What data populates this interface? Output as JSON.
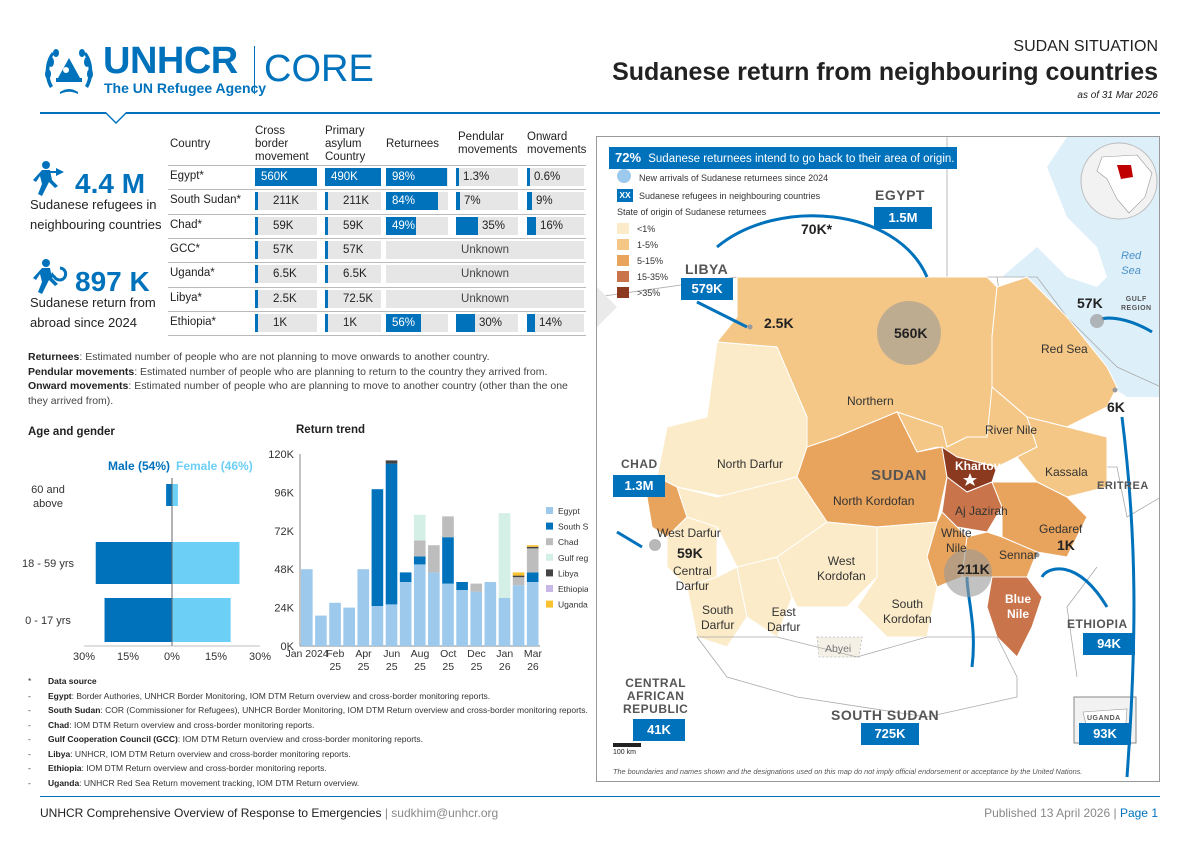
{
  "header": {
    "logo_text": "UNHCR",
    "logo_tagline": "The UN Refugee Agency",
    "product": "CORE",
    "supertitle": "SUDAN SITUATION",
    "title": "Sudanese return from neighbouring countries",
    "date": "as of 31 Mar 2026"
  },
  "kpis": [
    {
      "value": "4.4 M",
      "label_1": "Sudanese refugees in",
      "label_2": "neighbouring countries",
      "icon": "refugee-walking-icon"
    },
    {
      "value": "897 K",
      "label_1": "Sudanese return from",
      "label_2": "abroad since 2024",
      "icon": "return-walking-icon"
    }
  ],
  "table": {
    "headers": {
      "country": "Country",
      "cross_1": "Cross",
      "cross_2": "border",
      "cross_3": "movement",
      "primary_1": "Primary",
      "primary_2": "asylum",
      "primary_3": "Country",
      "returnees": "Returnees",
      "pendular_1": "Pendular",
      "pendular_2": "movements",
      "onward_1": "Onward",
      "onward_2": "movements"
    },
    "unknown_label": "Unknown",
    "rows": [
      {
        "country": "Egypt*",
        "cross": "560K",
        "cross_frac": 1.0,
        "primary": "490K",
        "primary_frac": 1.0,
        "returnees": "98%",
        "returnees_frac": 0.98,
        "pendular": "1.3%",
        "pendular_frac": 0.013,
        "onward": "0.6%",
        "onward_frac": 0.006,
        "unknown": false
      },
      {
        "country": "South Sudan*",
        "cross": "211K",
        "cross_frac": 0.04,
        "primary": "211K",
        "primary_frac": 0.04,
        "returnees": "84%",
        "returnees_frac": 0.84,
        "pendular": "7%",
        "pendular_frac": 0.07,
        "onward": "9%",
        "onward_frac": 0.09,
        "unknown": false
      },
      {
        "country": "Chad*",
        "cross": "59K",
        "cross_frac": 0.04,
        "primary": "59K",
        "primary_frac": 0.03,
        "returnees": "49%",
        "returnees_frac": 0.49,
        "pendular": "35%",
        "pendular_frac": 0.35,
        "onward": "16%",
        "onward_frac": 0.16,
        "unknown": false
      },
      {
        "country": "GCC*",
        "cross": "57K",
        "cross_frac": 0.03,
        "primary": "57K",
        "primary_frac": 0.03,
        "unknown": true
      },
      {
        "country": "Uganda*",
        "cross": "6.5K",
        "cross_frac": 0.01,
        "primary": "6.5K",
        "primary_frac": 0.01,
        "unknown": true
      },
      {
        "country": "Libya*",
        "cross": "2.5K",
        "cross_frac": 0.01,
        "primary": "72.5K",
        "primary_frac": 0.03,
        "unknown": true
      },
      {
        "country": "Ethiopia*",
        "cross": "1K",
        "cross_frac": 0.01,
        "primary": "1K",
        "primary_frac": 0.01,
        "returnees": "56%",
        "returnees_frac": 0.56,
        "pendular": "30%",
        "pendular_frac": 0.3,
        "onward": "14%",
        "onward_frac": 0.14,
        "unknown": false
      }
    ]
  },
  "definitions": [
    {
      "term": "Returnees",
      "text": ": Estimated number of people who are not planning to move onwards to another country."
    },
    {
      "term": "Pendular movements",
      "text": ": Estimated number of people who are planning to return to the country they arrived from."
    },
    {
      "term": "Onward movements",
      "text": ": Estimated number of people who are planning to move to another country (other than the one"
    },
    {
      "term": "",
      "text": "they arrived from)."
    }
  ],
  "age_gender": {
    "title": "Age and gender",
    "male_label": "Male (54%)",
    "female_label": "Female (46%)",
    "male_color": "#0072BC",
    "female_color": "#6CCFF6",
    "ticks": [
      "30%",
      "15%",
      "0%",
      "15%",
      "30%"
    ],
    "groups": [
      {
        "label_1": "60 and",
        "label_2": "above",
        "male": 2,
        "female": 2
      },
      {
        "label_1": "18 - 59 yrs",
        "label_2": "",
        "male": 26,
        "female": 23
      },
      {
        "label_1": "0 - 17 yrs",
        "label_2": "",
        "male": 23,
        "female": 20
      }
    ]
  },
  "chart_data": {
    "type": "bar",
    "title": "Return trend",
    "stacked": true,
    "ylim": [
      0,
      120000
    ],
    "yticks": [
      "0K",
      "24K",
      "48K",
      "72K",
      "96K",
      "120K"
    ],
    "x_labels": [
      {
        "i": 0,
        "l1": "Jan 2024",
        "l2": ""
      },
      {
        "i": 2,
        "l1": "Feb",
        "l2": "25"
      },
      {
        "i": 4,
        "l1": "Apr",
        "l2": "25"
      },
      {
        "i": 6,
        "l1": "Jun",
        "l2": "25"
      },
      {
        "i": 8,
        "l1": "Aug",
        "l2": "25"
      },
      {
        "i": 10,
        "l1": "Oct",
        "l2": "25"
      },
      {
        "i": 12,
        "l1": "Dec",
        "l2": "25"
      },
      {
        "i": 14,
        "l1": "Jan",
        "l2": "26"
      },
      {
        "i": 16,
        "l1": "Mar",
        "l2": "26"
      }
    ],
    "series": [
      {
        "name": "Egypt",
        "color": "#9DC9EC",
        "values": [
          48000,
          19000,
          27000,
          24000,
          48000,
          25000,
          26000,
          40000,
          51000,
          46000,
          39000,
          35000,
          34000,
          40000,
          30000,
          38000,
          40000
        ]
      },
      {
        "name": "South Sudan",
        "color": "#0072BC",
        "values": [
          0,
          0,
          0,
          0,
          0,
          73000,
          88000,
          6000,
          5000,
          0,
          29000,
          5000,
          0,
          0,
          0,
          0,
          6000
        ]
      },
      {
        "name": "Chad",
        "color": "#BDBDBD",
        "values": [
          0,
          0,
          0,
          0,
          0,
          0,
          0,
          0,
          10000,
          17000,
          13000,
          0,
          5000,
          0,
          0,
          5000,
          15000
        ]
      },
      {
        "name": "Gulf region",
        "color": "#D4EFE6",
        "values": [
          0,
          0,
          0,
          0,
          0,
          0,
          0,
          0,
          16000,
          0,
          0,
          0,
          0,
          0,
          53000,
          0,
          0
        ]
      },
      {
        "name": "Libya",
        "color": "#444444",
        "values": [
          0,
          0,
          0,
          0,
          0,
          0,
          2000,
          0,
          0,
          0,
          0,
          0,
          0,
          0,
          0,
          1000,
          1000
        ]
      },
      {
        "name": "Ethiopia",
        "color": "#C7B8E8",
        "values": [
          0,
          0,
          0,
          0,
          0,
          0,
          0,
          0,
          0,
          0,
          0,
          0,
          0,
          0,
          0,
          0,
          0
        ]
      },
      {
        "name": "Uganda",
        "color": "#F9C22E",
        "values": [
          0,
          0,
          0,
          0,
          0,
          0,
          0,
          0,
          0,
          0,
          0,
          0,
          0,
          0,
          0,
          2000,
          1000
        ]
      }
    ]
  },
  "sources": {
    "title": "Data source",
    "items": [
      {
        "term": "Egypt",
        "text": ": Border Authories, UNHCR Border Monitoring, IOM DTM Return overview and cross-border monitoring reports."
      },
      {
        "term": "South Sudan",
        "text": ": COR (Commissioner for Refugees), UNHCR Border Monitoring, IOM DTM Return overview and cross-border monitoring reports."
      },
      {
        "term": "Chad",
        "text": ": IOM DTM Return overview and cross-border monitoring reports."
      },
      {
        "term": "Gulf Cooperation Council (GCC)",
        "text": ": IOM DTM Return overview and cross-border monitoring reports."
      },
      {
        "term": "Libya",
        "text": ": UNHCR, IOM DTM Return overview and cross-border monitoring reports."
      },
      {
        "term": "Ethiopia",
        "text": ": IOM DTM Return overview and cross-border monitoring reports."
      },
      {
        "term": "Uganda",
        "text": ": UNHCR Red Sea Return movement tracking, IOM DTM Return overview."
      }
    ]
  },
  "map": {
    "banner_pct": "72%",
    "banner_text": "Sudanese returnees intend to go back to their area of origin.",
    "legend_new": "New arrivals of Sudanese returnees since 2024",
    "legend_xx_box": "XX",
    "legend_xx": "Sudanese refugees in neighbouring countries",
    "legend_state_title": "State of origin of Sudanese returnees",
    "legend_classes": [
      {
        "label": "<1%",
        "color": "#FBEBC8"
      },
      {
        "label": "1-5%",
        "color": "#F5C786"
      },
      {
        "label": "5-15%",
        "color": "#E8A35C"
      },
      {
        "label": "15-35%",
        "color": "#C9744A"
      },
      {
        "label": ">35%",
        "color": "#8B3A1F"
      }
    ],
    "countries": [
      {
        "name": "EGYPT",
        "refugees": "1.5M",
        "arrivals": "560K",
        "arrow_label": "70K*"
      },
      {
        "name": "LIBYA",
        "refugees": "579K",
        "arrivals": "2.5K"
      },
      {
        "name": "CHAD",
        "refugees": "1.3M",
        "arrivals": "59K"
      },
      {
        "name": "CENTRAL AFRICAN REPUBLIC",
        "name_1": "CENTRAL",
        "name_2": "AFRICAN",
        "name_3": "REPUBLIC",
        "refugees": "41K"
      },
      {
        "name": "SOUTH SUDAN",
        "refugees": "725K",
        "arrivals": "211K"
      },
      {
        "name": "ETHIOPIA",
        "refugees": "94K",
        "arrivals": "1K"
      },
      {
        "name": "UGANDA",
        "refugees": "93K"
      },
      {
        "name": "ERITREA"
      },
      {
        "name": "GULF REGION",
        "name_1": "GULF",
        "name_2": "REGION",
        "arrivals": "57K"
      },
      {
        "name": "Red Sea coast",
        "arrivals": "6K"
      }
    ],
    "sudan_label": "SUDAN",
    "sea_label_1": "Red",
    "sea_label_2": "Sea",
    "states": {
      "northern": "Northern",
      "red_sea": "Red Sea",
      "river_nile": "River Nile",
      "khartoum": "Khartoum",
      "kassala": "Kassala",
      "north_darfur": "North Darfur",
      "north_kordofan": "North Kordofan",
      "aj_jazirah": "Aj Jazirah",
      "gedaref": "Gedaref",
      "west_darfur": "West Darfur",
      "white_nile_1": "White",
      "white_nile_2": "Nile",
      "sennar": "Sennar",
      "central_darfur_1": "Central",
      "central_darfur_2": "Darfur",
      "west_kordofan_1": "West",
      "west_kordofan_2": "Kordofan",
      "south_darfur_1": "South",
      "south_darfur_2": "Darfur",
      "east_darfur_1": "East",
      "east_darfur_2": "Darfur",
      "south_kordofan_1": "South",
      "south_kordofan_2": "Kordofan",
      "blue_nile_1": "Blue",
      "blue_nile_2": "Nile",
      "abyei": "Abyei"
    },
    "scale_label": "100 km",
    "disclaimer": "The boundaries and names shown and the designations used on this map do not imply official endorsement or acceptance by the United Nations."
  },
  "footer": {
    "left": "UNHCR Comprehensive Overview of Response to Emergencies",
    "email": "sudkhim@unhcr.org",
    "published": "Published 13 April 2026",
    "page": "Page 1"
  }
}
